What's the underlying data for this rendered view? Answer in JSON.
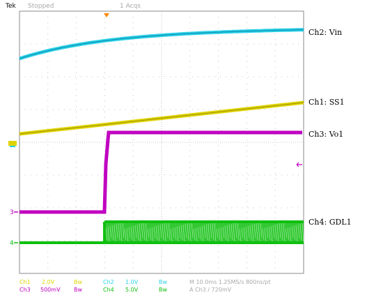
{
  "header": {
    "brand": "Tek",
    "status": "Stopped",
    "acqs": "1 Acqs"
  },
  "labels": {
    "ch2": "Ch2: Vin",
    "ch1": "Ch1: SS1",
    "ch3": "Ch3: Vo1",
    "ch4": "Ch4: GDL1"
  },
  "markers": {
    "ch3": "3",
    "ch4": "4"
  },
  "footer": {
    "ch1_name": "Ch1",
    "ch1_scale": "2.0V",
    "ch1_bw": "Bw",
    "ch2_name": "Ch2",
    "ch2_scale": "1.0V",
    "ch2_bw": "Bw",
    "ch3_name": "Ch3",
    "ch3_scale": "500mV",
    "ch3_bw": "Bw",
    "ch4_name": "Ch4",
    "ch4_scale": "5.0V",
    "ch4_bw": "Bw",
    "timebase": "M 10.0ms 1.25MS/s  800ns/pt",
    "trigger": "A  Ch3  ∕  720mV"
  },
  "colors": {
    "ch1": "#e0d400",
    "ch2": "#2ad0e8",
    "ch3": "#c000c0",
    "ch4": "#10c010",
    "grid": "#9a9a9a",
    "trigger_marker": "#ff8800"
  }
}
